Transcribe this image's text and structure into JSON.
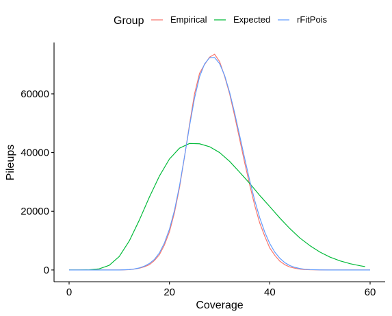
{
  "chart_data": {
    "type": "line",
    "xlabel": "Coverage",
    "ylabel": "Pileups",
    "xlim": [
      -3,
      63
    ],
    "ylim": [
      -4000,
      77500
    ],
    "xticks": [
      0,
      20,
      40,
      60
    ],
    "yticks": [
      0,
      20000,
      40000,
      60000
    ],
    "grid": false,
    "legend": {
      "title": "Group",
      "position": "top"
    },
    "series": [
      {
        "name": "Empirical",
        "color": "#F8766D",
        "x": [
          0,
          2,
          4,
          6,
          8,
          10,
          11,
          12,
          13,
          14,
          15,
          16,
          17,
          18,
          19,
          20,
          21,
          22,
          23,
          24,
          25,
          26,
          27,
          28,
          29,
          30,
          31,
          32,
          33,
          34,
          35,
          36,
          37,
          38,
          39,
          40,
          41,
          42,
          43,
          44,
          45,
          46,
          47,
          48,
          50,
          52,
          54,
          56,
          58,
          60
        ],
        "y": [
          0,
          0,
          0,
          0,
          0,
          0,
          50,
          100,
          300,
          600,
          1100,
          1800,
          3200,
          5200,
          8500,
          13000,
          19500,
          28000,
          38500,
          49500,
          60000,
          67000,
          70000,
          72500,
          73500,
          71000,
          66000,
          60000,
          52500,
          44500,
          36500,
          29000,
          22000,
          16000,
          11500,
          7500,
          5000,
          3000,
          1800,
          1000,
          600,
          300,
          150,
          80,
          20,
          0,
          0,
          0,
          0,
          0
        ]
      },
      {
        "name": "Expected",
        "color": "#00BA38",
        "x": [
          0,
          2,
          4,
          6,
          8,
          10,
          12,
          14,
          16,
          18,
          20,
          22,
          24,
          26,
          28,
          30,
          32,
          34,
          36,
          38,
          40,
          42,
          44,
          46,
          48,
          50,
          52,
          54,
          56,
          58,
          59
        ],
        "y": [
          0,
          5,
          60,
          400,
          1600,
          4600,
          9900,
          17000,
          24800,
          32000,
          37800,
          41500,
          43100,
          43000,
          42000,
          40000,
          37000,
          33300,
          29500,
          25400,
          21600,
          17700,
          14100,
          10900,
          8300,
          6100,
          4400,
          3100,
          2150,
          1450,
          1150
        ]
      },
      {
        "name": "rFitPois",
        "color": "#619CFF",
        "x": [
          0,
          2,
          4,
          6,
          8,
          10,
          11,
          12,
          13,
          14,
          15,
          16,
          17,
          18,
          19,
          20,
          21,
          22,
          23,
          24,
          25,
          26,
          27,
          28,
          29,
          30,
          31,
          32,
          33,
          34,
          35,
          36,
          37,
          38,
          39,
          40,
          41,
          42,
          43,
          44,
          45,
          46,
          47,
          48,
          50,
          52,
          54,
          56,
          58,
          60
        ],
        "y": [
          0,
          0,
          0,
          0,
          0,
          0,
          60,
          150,
          350,
          700,
          1300,
          2200,
          3600,
          5800,
          9200,
          13900,
          20300,
          28600,
          38600,
          49000,
          58500,
          65800,
          70200,
          72300,
          72400,
          70300,
          66300,
          60500,
          53500,
          45800,
          38000,
          30500,
          23700,
          17800,
          12900,
          9000,
          6100,
          4000,
          2500,
          1500,
          900,
          500,
          250,
          130,
          30,
          5,
          0,
          0,
          0,
          0
        ]
      }
    ]
  }
}
